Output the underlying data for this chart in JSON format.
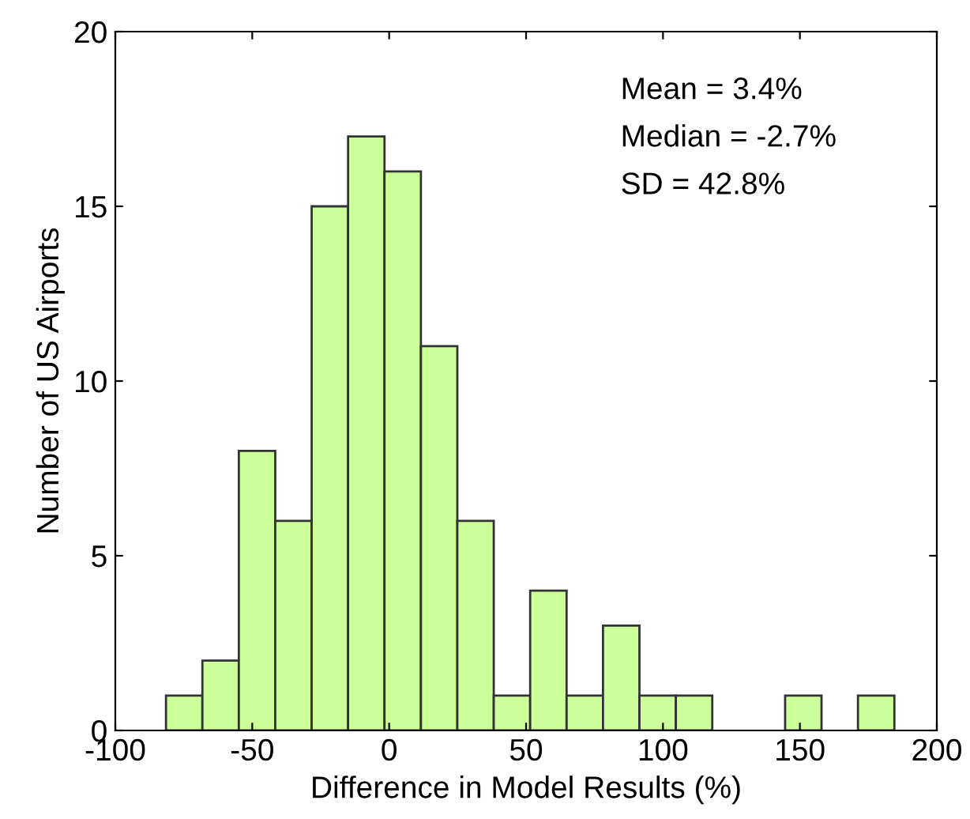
{
  "chart_data": {
    "type": "histogram",
    "xlabel": "Difference in Model Results (%)",
    "ylabel": "Number of US Airports",
    "bins": [
      -81.5,
      -68.2,
      -54.9,
      -41.6,
      -28.3,
      -15.0,
      -1.7,
      11.6,
      24.9,
      38.2,
      51.5,
      64.8,
      78.1,
      91.4,
      104.7,
      118.0,
      131.3,
      144.6,
      157.9,
      171.2,
      184.5
    ],
    "values": [
      1,
      2,
      8,
      6,
      15,
      17,
      16,
      11,
      6,
      1,
      4,
      1,
      3,
      1,
      1,
      0,
      0,
      1,
      0,
      1
    ],
    "color": "#ccff99",
    "xlim": [
      -100,
      200
    ],
    "xticks": [
      -100,
      -50,
      0,
      50,
      100,
      150,
      200
    ],
    "ylim": [
      0,
      20
    ],
    "yticks": [
      0,
      5,
      10,
      15,
      20
    ],
    "grid": false,
    "legend": false,
    "annotations": [
      "Mean = 3.4%",
      "Median = -2.7%",
      "SD = 42.8%"
    ]
  }
}
